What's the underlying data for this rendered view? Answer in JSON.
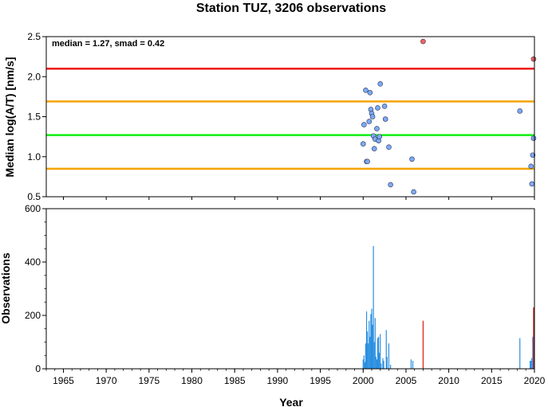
{
  "chart_data": [
    {
      "type": "scatter",
      "title": "Station TUZ, 3206 observations",
      "xlabel": "",
      "ylabel": "Median log(A/T) [nm/s]",
      "annotation": "median = 1.27, smad = 0.42",
      "xlim": [
        1963,
        2020
      ],
      "ylim": [
        0.5,
        2.5
      ],
      "yticks": [
        "0.5",
        "1.0",
        "1.5",
        "2.0",
        "2.5"
      ],
      "reference_lines": [
        {
          "name": "upper-outlier",
          "y": 2.1,
          "color": "#ee1111"
        },
        {
          "name": "upper-bound",
          "y": 1.69,
          "color": "#f5a300"
        },
        {
          "name": "median",
          "y": 1.27,
          "color": "#11ee11"
        },
        {
          "name": "lower-bound",
          "y": 0.85,
          "color": "#f5a300"
        }
      ],
      "series": [
        {
          "color": "#7aaaf5",
          "points": [
            [
              2000.0,
              1.16
            ],
            [
              2000.1,
              1.4
            ],
            [
              2000.3,
              1.83
            ],
            [
              2000.4,
              0.94
            ],
            [
              2000.5,
              0.94
            ],
            [
              2000.7,
              1.44
            ],
            [
              2000.8,
              1.8
            ],
            [
              2000.9,
              1.59
            ],
            [
              2001.0,
              1.54
            ],
            [
              2001.1,
              1.5
            ],
            [
              2001.2,
              1.26
            ],
            [
              2001.3,
              1.1
            ],
            [
              2001.4,
              1.22
            ],
            [
              2001.6,
              1.35
            ],
            [
              2001.7,
              1.61
            ],
            [
              2001.8,
              1.2
            ],
            [
              2001.9,
              1.25
            ],
            [
              2002.0,
              1.91
            ],
            [
              2002.5,
              1.63
            ],
            [
              2002.6,
              1.47
            ],
            [
              2003.0,
              1.12
            ],
            [
              2003.2,
              0.65
            ],
            [
              2005.7,
              0.97
            ],
            [
              2005.9,
              0.56
            ],
            [
              2018.3,
              1.57
            ],
            [
              2019.6,
              0.88
            ],
            [
              2019.7,
              0.66
            ],
            [
              2019.8,
              1.02
            ],
            [
              2019.9,
              1.23
            ]
          ]
        },
        {
          "color": "#f2645a",
          "points": [
            [
              2007.0,
              2.44
            ],
            [
              2019.9,
              2.22
            ]
          ]
        }
      ]
    },
    {
      "type": "bar",
      "xlabel": "Year",
      "ylabel": "Observations",
      "xlim": [
        1963,
        2020
      ],
      "ylim": [
        0,
        600
      ],
      "yticks": [
        "0",
        "200",
        "400",
        "600"
      ],
      "xticks": [
        "1965",
        "1970",
        "1975",
        "1980",
        "1985",
        "1990",
        "1995",
        "2000",
        "2005",
        "2010",
        "2015",
        "2020"
      ],
      "series": [
        {
          "color": "#2a8fe0",
          "bars": [
            [
              2000.0,
              35
            ],
            [
              2000.1,
              50
            ],
            [
              2000.2,
              25
            ],
            [
              2000.3,
              95
            ],
            [
              2000.4,
              215
            ],
            [
              2000.5,
              140
            ],
            [
              2000.6,
              95
            ],
            [
              2000.7,
              180
            ],
            [
              2000.8,
              120
            ],
            [
              2000.9,
              205
            ],
            [
              2001.0,
              225
            ],
            [
              2001.1,
              165
            ],
            [
              2001.2,
              460
            ],
            [
              2001.3,
              100
            ],
            [
              2001.4,
              190
            ],
            [
              2001.5,
              45
            ],
            [
              2001.6,
              35
            ],
            [
              2001.7,
              115
            ],
            [
              2001.8,
              120
            ],
            [
              2001.9,
              60
            ],
            [
              2002.0,
              130
            ],
            [
              2002.1,
              20
            ],
            [
              2002.3,
              40
            ],
            [
              2002.4,
              30
            ],
            [
              2002.7,
              145
            ],
            [
              2002.8,
              45
            ],
            [
              2003.0,
              95
            ],
            [
              2003.2,
              15
            ],
            [
              2005.6,
              35
            ],
            [
              2005.8,
              30
            ],
            [
              2018.3,
              115
            ],
            [
              2019.5,
              30
            ],
            [
              2019.6,
              30
            ],
            [
              2019.7,
              40
            ],
            [
              2019.8,
              120
            ],
            [
              2019.9,
              30
            ]
          ]
        },
        {
          "color": "#dd1c1c",
          "bars": [
            [
              2007.0,
              180
            ],
            [
              2019.9,
              230
            ]
          ]
        }
      ]
    }
  ]
}
